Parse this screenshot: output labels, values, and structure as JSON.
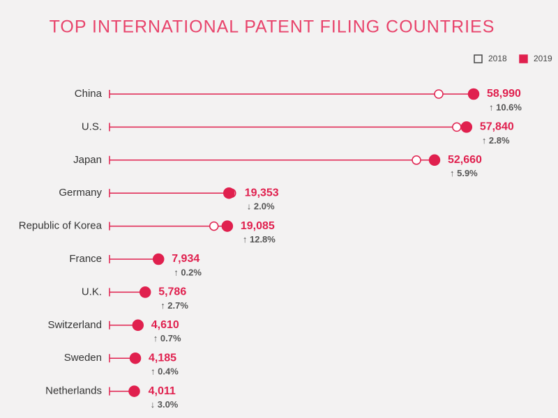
{
  "chart_data": {
    "type": "dot",
    "title": "TOP INTERNATIONAL PATENT FILING COUNTRIES",
    "categories": [
      "China",
      "U.S.",
      "Japan",
      "Germany",
      "Republic of Korea",
      "France",
      "U.K.",
      "Switzerland",
      "Sweden",
      "Netherlands"
    ],
    "series": [
      {
        "name": "2018",
        "color": "#e0204e",
        "hollow": true,
        "values": [
          53340,
          56260,
          49730,
          19750,
          16920,
          7920,
          5630,
          4580,
          4170,
          4140
        ]
      },
      {
        "name": "2019",
        "color": "#e0204e",
        "hollow": false,
        "values": [
          58990,
          57840,
          52660,
          19353,
          19085,
          7934,
          5786,
          4610,
          4185,
          4011
        ],
        "value_labels": [
          "58,990",
          "57,840",
          "52,660",
          "19,353",
          "19,085",
          "7,934",
          "5,786",
          "4,610",
          "4,185",
          "4,011"
        ]
      }
    ],
    "change_labels": [
      "↑ 10.6%",
      "↑ 2.8%",
      "↑ 5.9%",
      "↓ 2.0%",
      "↑ 12.8%",
      "↑ 0.2%",
      "↑ 2.7%",
      "↑ 0.7%",
      "↑ 0.4%",
      "↓ 3.0%"
    ],
    "legend": "top-right"
  }
}
